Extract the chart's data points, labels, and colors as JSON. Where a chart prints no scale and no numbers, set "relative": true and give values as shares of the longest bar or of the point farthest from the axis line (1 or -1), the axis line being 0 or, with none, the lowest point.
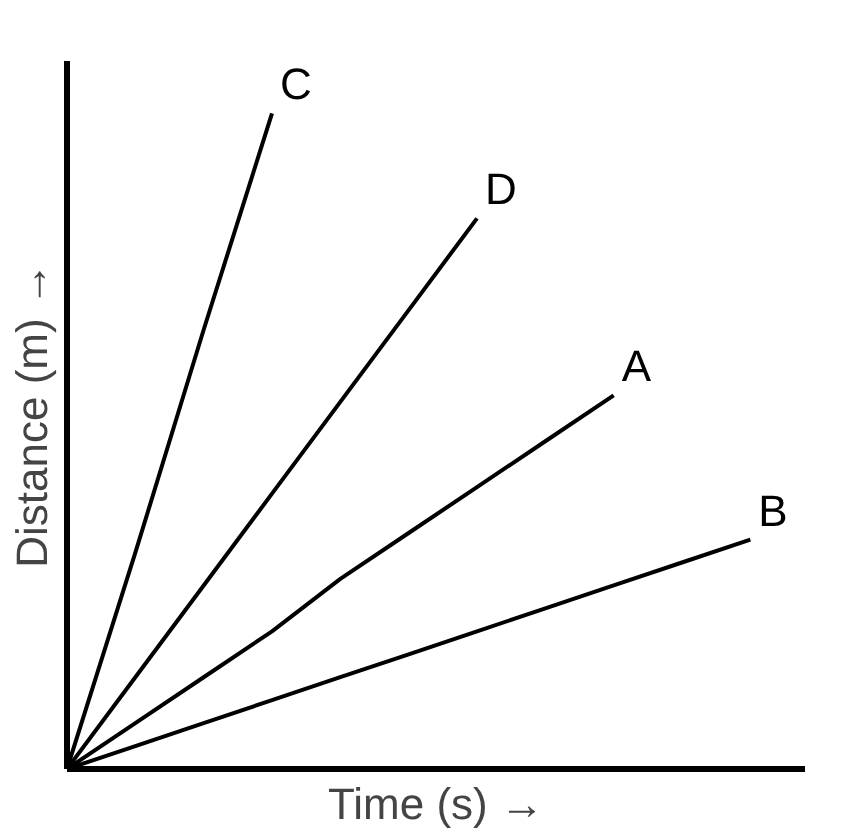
{
  "chart_data": {
    "type": "line",
    "relative": true,
    "xlabel": "Time (s) →",
    "ylabel": "Distance (m) →",
    "marker": "none",
    "line_style": "solid",
    "categories": [
      null,
      null,
      null,
      null,
      null,
      null,
      null,
      null,
      null,
      null,
      null
    ],
    "series": [
      {
        "name": "C",
        "color": "#000000",
        "values": [
          0,
          0.33,
          0.67,
          1,
          null,
          null,
          null,
          null,
          null,
          null,
          null
        ]
      },
      {
        "name": "D",
        "color": "#000000",
        "values": [
          0,
          0.14,
          0.28,
          0.42,
          0.56,
          0.7,
          0.84,
          null,
          null,
          null,
          null
        ]
      },
      {
        "name": "A",
        "color": "#000000",
        "values": [
          0,
          0.07,
          0.14,
          0.21,
          0.29,
          0.36,
          0.43,
          0.5,
          0.57,
          null,
          null
        ]
      },
      {
        "name": "B",
        "color": "#000000",
        "values": [
          0,
          0.035,
          0.07,
          0.105,
          0.14,
          0.175,
          0.21,
          0.245,
          0.28,
          0.315,
          0.35
        ]
      }
    ]
  }
}
